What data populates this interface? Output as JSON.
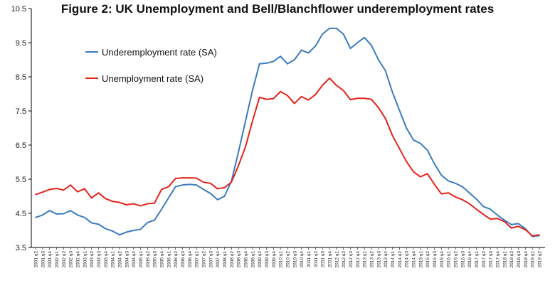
{
  "chart_data": {
    "type": "line",
    "title": "Figure 2: UK Unemployment and Bell/Blanchflower underemployment rates",
    "xlabel": "",
    "ylabel": "",
    "ylim": [
      3.5,
      10.5
    ],
    "yticks": [
      "3.5",
      "4.5",
      "5.5",
      "6.5",
      "7.5",
      "8.5",
      "9.5",
      "10.5"
    ],
    "grid": false,
    "legend_position": "top-left",
    "categories": [
      "2001 q2",
      "2001 q3",
      "2001 q4",
      "2002 q1",
      "2002 q2",
      "2002 q3",
      "2002 q4",
      "2003 q1",
      "2003 q2",
      "2003 q3",
      "2003 q4",
      "2004 q1",
      "2004 q2",
      "2004 q3",
      "2004 q4",
      "2005 q1",
      "2005 q2",
      "2005 q3",
      "2005 q4",
      "2006 q1",
      "2006 q2",
      "2006 q3",
      "2006 q4",
      "2007 q1",
      "2007 q2",
      "2007 q3",
      "2007 q4",
      "2008 q1",
      "2008 q2",
      "2008 q3",
      "2008 q4",
      "2009 q1",
      "2009 q2",
      "2009 q3",
      "2009 q4",
      "2010 q1",
      "2010 q2",
      "2010 q3",
      "2010 q4",
      "2011 q1",
      "2011 q2",
      "2011 q3",
      "2011 q4",
      "2012 q1",
      "2012 q2",
      "2012 q3",
      "2012 q4",
      "2013 q1",
      "2013 q2",
      "2013 q3",
      "2013 q4",
      "2014 q1",
      "2014 q2",
      "2014 q3",
      "2014 q4",
      "2015 q1",
      "2015 q2",
      "2015 q3",
      "2015 q4",
      "2016 q1",
      "2016 q2",
      "2016 q3",
      "2016 q4",
      "2017 q1",
      "2017 q2",
      "2017 q3",
      "2017 q4",
      "2018 q1",
      "2018 q2",
      "2018 q3",
      "2018 q4",
      "2019 q1",
      "2019 q2"
    ],
    "series": [
      {
        "name": "Underemployment rate (SA)",
        "color": "#3b7bbf",
        "values": [
          4.38,
          4.45,
          4.58,
          4.48,
          4.49,
          4.58,
          4.45,
          4.38,
          4.22,
          4.18,
          4.05,
          3.98,
          3.87,
          3.95,
          4.0,
          4.03,
          4.23,
          4.3,
          4.62,
          4.95,
          5.28,
          5.33,
          5.35,
          5.33,
          5.2,
          5.08,
          4.9,
          5.0,
          5.45,
          6.3,
          7.2,
          8.1,
          8.88,
          8.9,
          8.95,
          9.1,
          8.88,
          9.0,
          9.28,
          9.2,
          9.4,
          9.75,
          9.92,
          9.92,
          9.75,
          9.33,
          9.5,
          9.65,
          9.42,
          9.0,
          8.68,
          8.05,
          7.52,
          7.0,
          6.65,
          6.55,
          6.35,
          5.95,
          5.62,
          5.45,
          5.38,
          5.28,
          5.1,
          4.92,
          4.7,
          4.62,
          4.45,
          4.3,
          4.17,
          4.2,
          4.05,
          3.82,
          3.85
        ]
      },
      {
        "name": "Unemployment rate (SA)",
        "color": "#e5231b",
        "values": [
          5.05,
          5.12,
          5.2,
          5.23,
          5.18,
          5.33,
          5.13,
          5.22,
          4.95,
          5.1,
          4.93,
          4.85,
          4.82,
          4.75,
          4.78,
          4.72,
          4.78,
          4.8,
          5.2,
          5.28,
          5.52,
          5.54,
          5.54,
          5.53,
          5.41,
          5.38,
          5.22,
          5.25,
          5.42,
          5.9,
          6.45,
          7.2,
          7.9,
          7.84,
          7.86,
          8.07,
          7.95,
          7.72,
          7.92,
          7.82,
          7.98,
          8.25,
          8.46,
          8.25,
          8.1,
          7.83,
          7.87,
          7.87,
          7.84,
          7.6,
          7.28,
          6.78,
          6.4,
          6.02,
          5.72,
          5.57,
          5.66,
          5.35,
          5.07,
          5.1,
          4.98,
          4.9,
          4.78,
          4.62,
          4.47,
          4.33,
          4.35,
          4.26,
          4.07,
          4.12,
          4.02,
          3.84,
          3.87
        ]
      }
    ]
  }
}
